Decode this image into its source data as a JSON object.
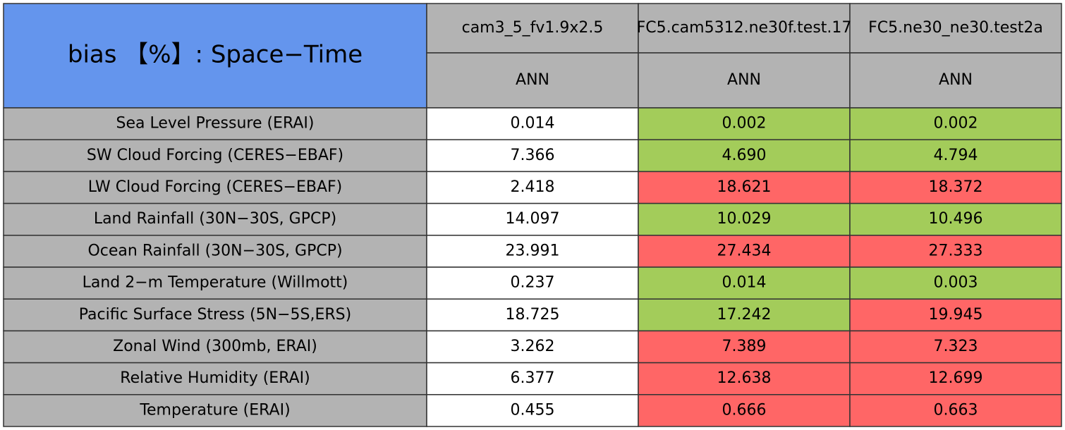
{
  "table": {
    "title": "bias 【%】: Space−Time",
    "columns": [
      "cam3_5_fv1.9x2.5",
      "FC5.cam5312.ne30f.test.17",
      "FC5.ne30_ne30.test2a"
    ],
    "subheaders": [
      "ANN",
      "ANN",
      "ANN"
    ],
    "rows": [
      {
        "label": "Sea Level Pressure (ERAI)",
        "values": [
          "0.014",
          "0.002",
          "0.002"
        ],
        "colors": [
          "#ffffff",
          "#a3cc5a",
          "#a3cc5a"
        ]
      },
      {
        "label": "SW Cloud Forcing (CERES−EBAF)",
        "values": [
          "7.366",
          "4.690",
          "4.794"
        ],
        "colors": [
          "#ffffff",
          "#a3cc5a",
          "#a3cc5a"
        ]
      },
      {
        "label": "LW Cloud Forcing (CERES−EBAF)",
        "values": [
          "2.418",
          "18.621",
          "18.372"
        ],
        "colors": [
          "#ffffff",
          "#ff6666",
          "#ff6666"
        ]
      },
      {
        "label": "Land Rainfall (30N−30S, GPCP)",
        "values": [
          "14.097",
          "10.029",
          "10.496"
        ],
        "colors": [
          "#ffffff",
          "#a3cc5a",
          "#a3cc5a"
        ]
      },
      {
        "label": "Ocean Rainfall (30N−30S, GPCP)",
        "values": [
          "23.991",
          "27.434",
          "27.333"
        ],
        "colors": [
          "#ffffff",
          "#ff6666",
          "#ff6666"
        ]
      },
      {
        "label": "Land 2−m Temperature (Willmott)",
        "values": [
          "0.237",
          "0.014",
          "0.003"
        ],
        "colors": [
          "#ffffff",
          "#a3cc5a",
          "#a3cc5a"
        ]
      },
      {
        "label": "Pacific Surface Stress (5N−5S,ERS)",
        "values": [
          "18.725",
          "17.242",
          "19.945"
        ],
        "colors": [
          "#ffffff",
          "#a3cc5a",
          "#ff6666"
        ]
      },
      {
        "label": "Zonal Wind (300mb, ERAI)",
        "values": [
          "3.262",
          "7.389",
          "7.323"
        ],
        "colors": [
          "#ffffff",
          "#ff6666",
          "#ff6666"
        ]
      },
      {
        "label": "Relative Humidity (ERAI)",
        "values": [
          "6.377",
          "12.638",
          "12.699"
        ],
        "colors": [
          "#ffffff",
          "#ff6666",
          "#ff6666"
        ]
      },
      {
        "label": "Temperature (ERAI)",
        "values": [
          "0.455",
          "0.666",
          "0.663"
        ],
        "colors": [
          "#ffffff",
          "#ff6666",
          "#ff6666"
        ]
      }
    ]
  }
}
